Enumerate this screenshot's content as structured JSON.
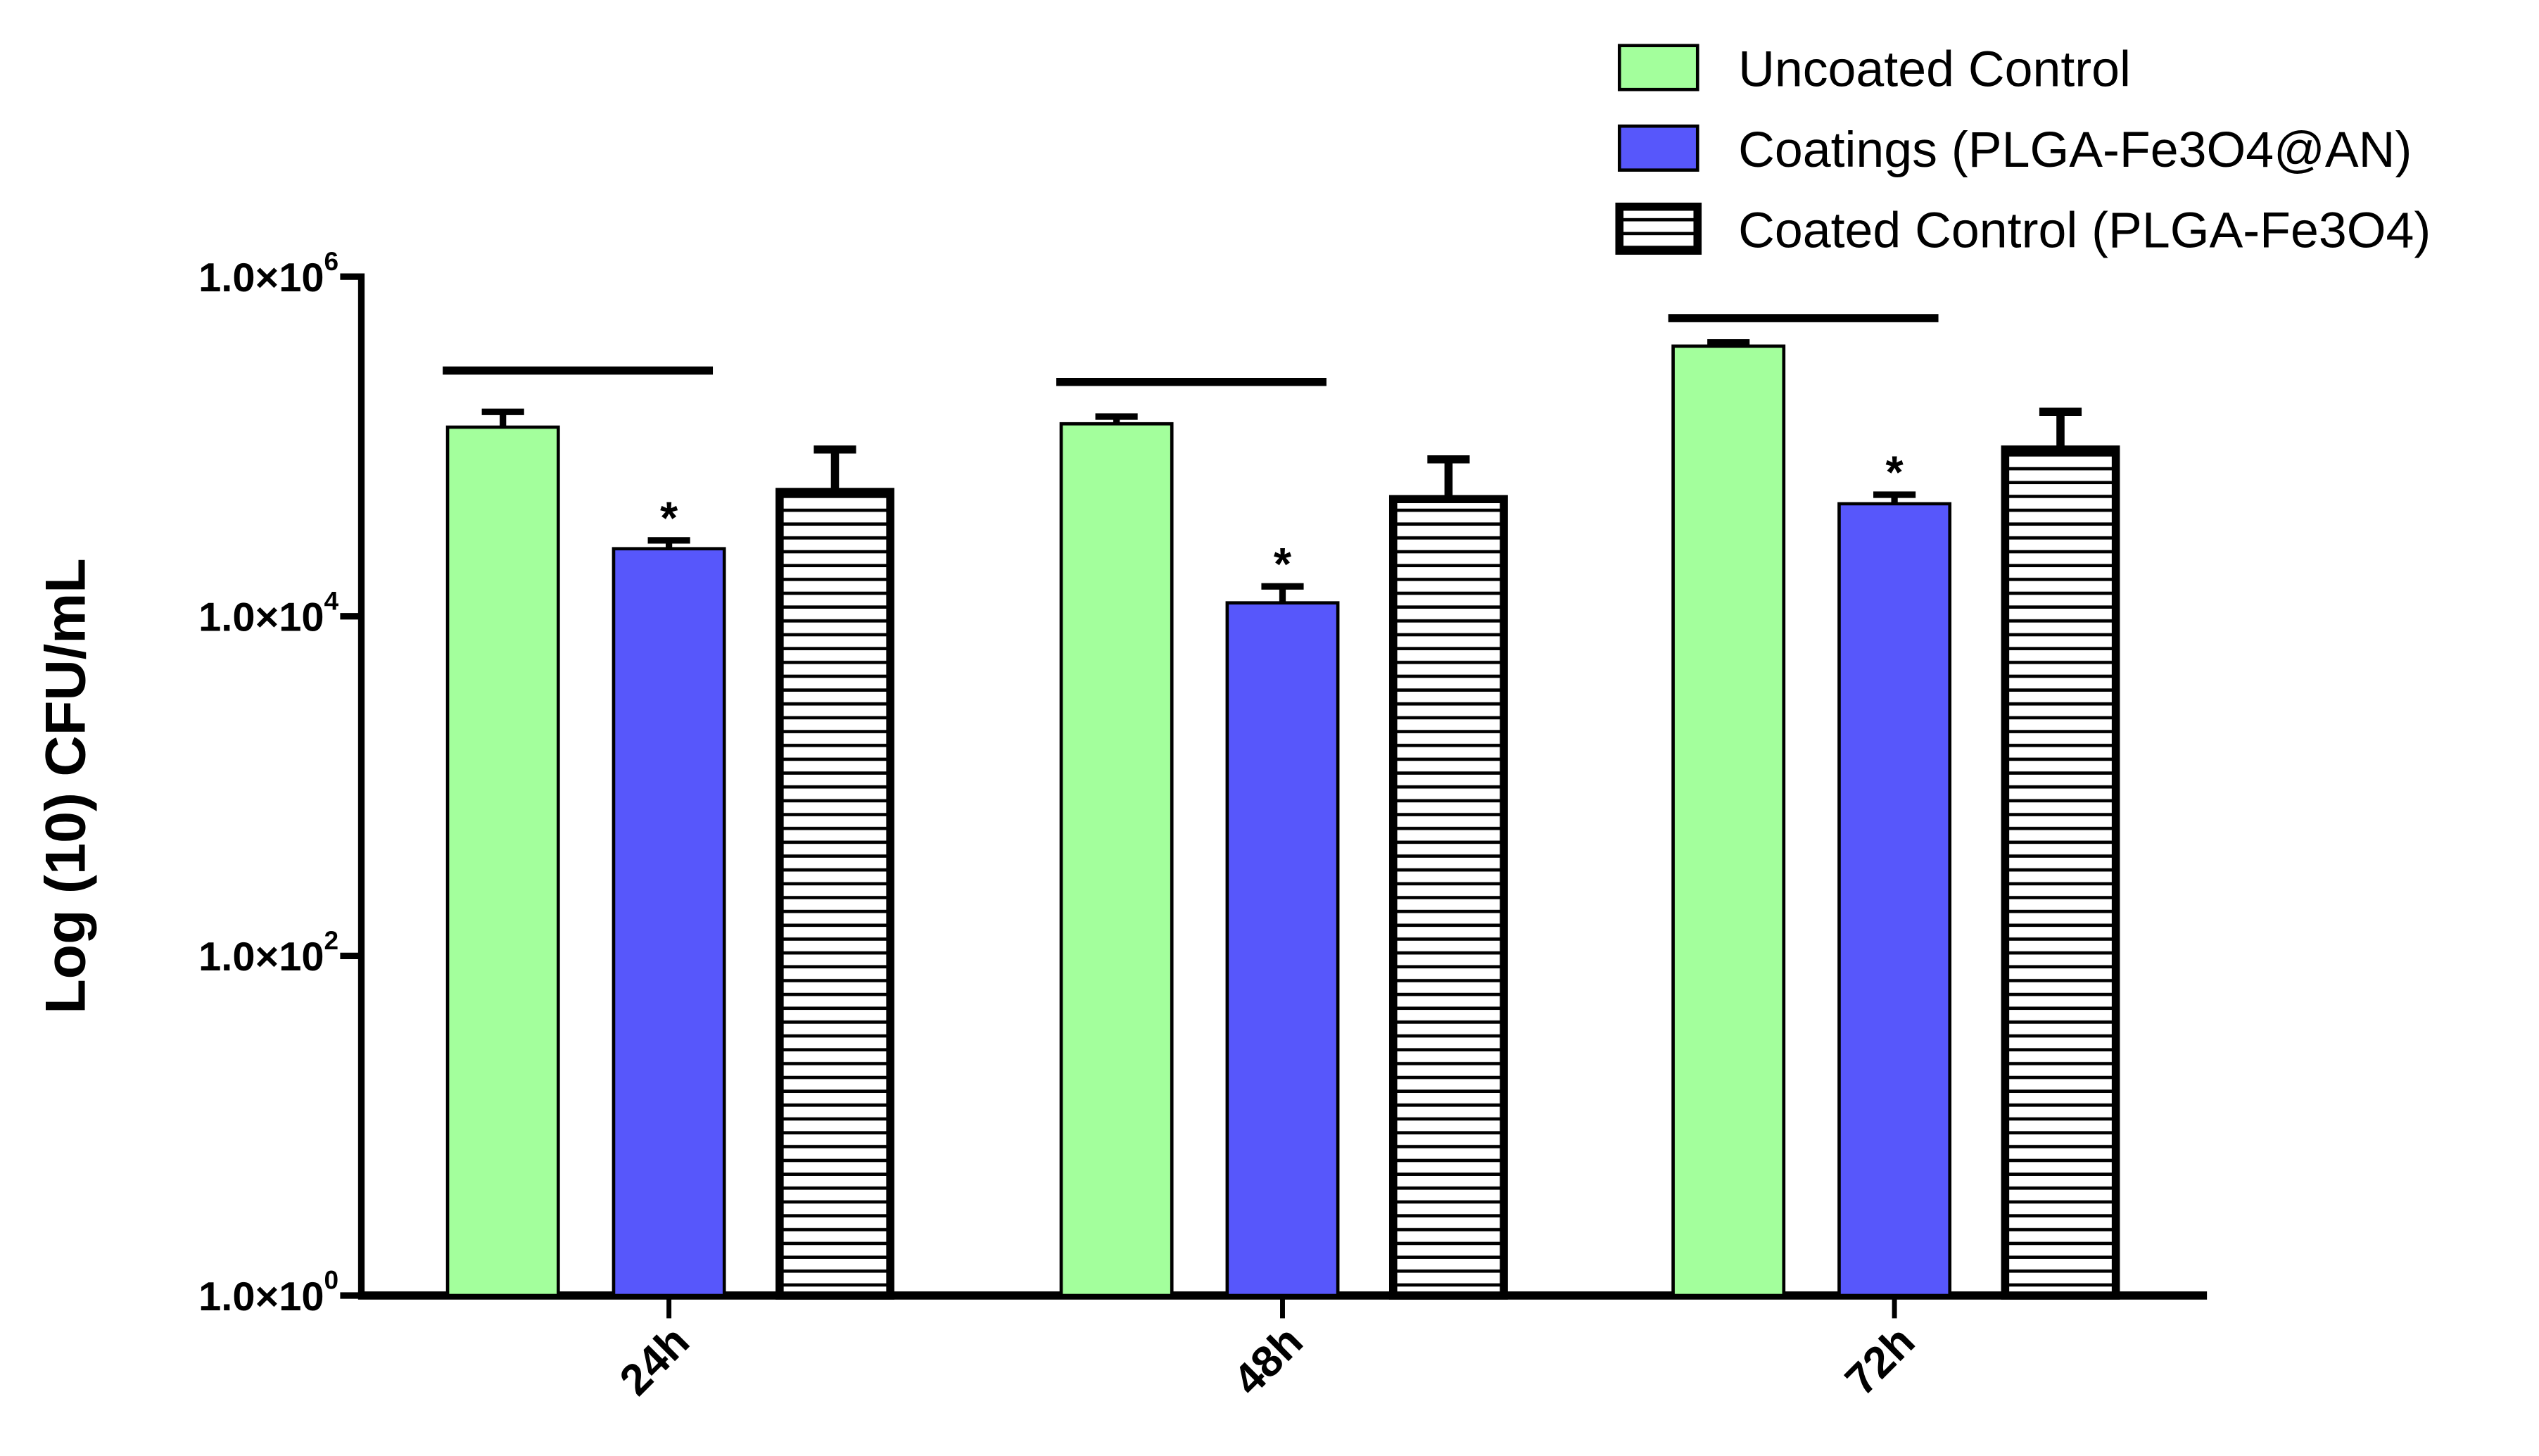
{
  "chart_data": {
    "type": "bar",
    "title": "",
    "xlabel": "",
    "ylabel": "Log (10) CFU/mL",
    "yscale": "log",
    "ylim": [
      1,
      1000000
    ],
    "yticks": [
      {
        "value": 1,
        "mantissa": "1.0×10",
        "exp": "0"
      },
      {
        "value": 100,
        "mantissa": "1.0×10",
        "exp": "2"
      },
      {
        "value": 10000,
        "mantissa": "1.0×10",
        "exp": "4"
      },
      {
        "value": 1000000,
        "mantissa": "1.0×10",
        "exp": "6"
      }
    ],
    "categories": [
      "24h",
      "48h",
      "72h"
    ],
    "legend_position": "top-right",
    "series": [
      {
        "name": "Uncoated Control",
        "color": "#a3ff9c",
        "pattern": "solid",
        "values": [
          130000,
          136000,
          390000
        ],
        "error_upper": [
          160000,
          150000,
          410000
        ]
      },
      {
        "name": "Coatings (PLGA-Fe3O4@AN)",
        "color": "#5757fb",
        "pattern": "solid",
        "values": [
          25000,
          12000,
          46000
        ],
        "error_upper": [
          28000,
          15000,
          52000
        ]
      },
      {
        "name": "Coated Control (PLGA-Fe3O4)",
        "color": "#ffffff",
        "pattern": "horizontal-stripes",
        "values": [
          54000,
          49000,
          96000
        ],
        "error_upper": [
          96000,
          84000,
          160000
        ]
      }
    ],
    "annotations": {
      "significance_marker": "*",
      "asterisk_series": 1,
      "bracket_values": [
        280000,
        240000,
        570000
      ]
    },
    "grid": false
  }
}
